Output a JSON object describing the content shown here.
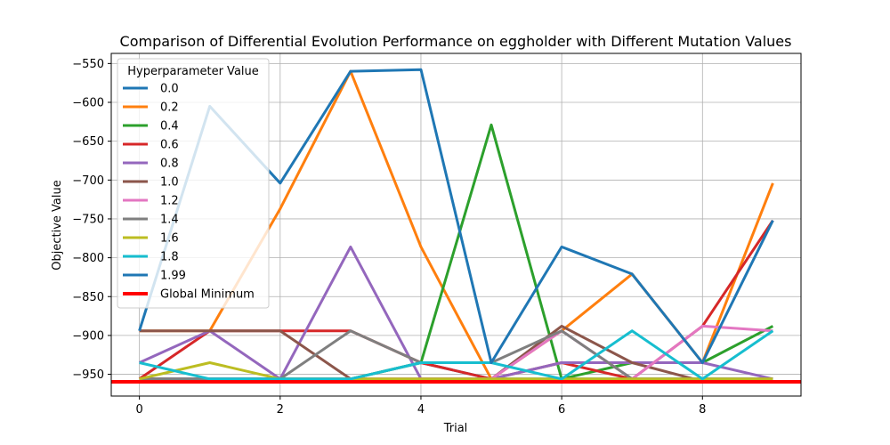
{
  "chart_data": {
    "type": "line",
    "title": "Comparison of Differential Evolution Performance on eggholder with Different Mutation Values",
    "xlabel": "Trial",
    "ylabel": "Objective Value",
    "xlim": [
      -0.4,
      9.4
    ],
    "ylim": [
      -978,
      -537
    ],
    "xticks": [
      0,
      2,
      4,
      6,
      8
    ],
    "yticks": [
      -950,
      -900,
      -850,
      -800,
      -750,
      -700,
      -650,
      -600,
      -550
    ],
    "grid": true,
    "legend_title": "Hyperparameter Value",
    "legend_position": "upper-left",
    "x": [
      0,
      1,
      2,
      3,
      4,
      5,
      6,
      7,
      8,
      9
    ],
    "series": [
      {
        "name": "0.0",
        "color": "#1f77b4",
        "values": [
          -956,
          -956,
          -956,
          -956,
          -935,
          -956,
          -956,
          -956,
          -956,
          -956
        ]
      },
      {
        "name": "0.2",
        "color": "#ff7f0e",
        "values": [
          -894,
          -894,
          -737,
          -560,
          -786,
          -956,
          -894,
          -821,
          -935,
          -704
        ]
      },
      {
        "name": "0.4",
        "color": "#2ca02c",
        "values": [
          -956,
          -956,
          -956,
          -956,
          -935,
          -629,
          -956,
          -935,
          -935,
          -888
        ]
      },
      {
        "name": "0.6",
        "color": "#d62728",
        "values": [
          -956,
          -894,
          -894,
          -894,
          -935,
          -956,
          -935,
          -956,
          -888,
          -752
        ]
      },
      {
        "name": "0.8",
        "color": "#9467bd",
        "values": [
          -935,
          -894,
          -956,
          -786,
          -956,
          -956,
          -935,
          -935,
          -935,
          -956
        ]
      },
      {
        "name": "1.0",
        "color": "#8c564b",
        "values": [
          -894,
          -894,
          -894,
          -956,
          -956,
          -956,
          -888,
          -935,
          -959,
          -956
        ]
      },
      {
        "name": "1.2",
        "color": "#e377c2",
        "values": [
          -956,
          -956,
          -956,
          -956,
          -956,
          -956,
          -894,
          -956,
          -888,
          -894
        ]
      },
      {
        "name": "1.4",
        "color": "#7f7f7f",
        "values": [
          -956,
          -956,
          -956,
          -894,
          -935,
          -935,
          -894,
          -956,
          -956,
          -956
        ]
      },
      {
        "name": "1.6",
        "color": "#bcbd22",
        "values": [
          -956,
          -935,
          -956,
          -956,
          -956,
          -956,
          -956,
          -956,
          -956,
          -956
        ]
      },
      {
        "name": "1.8",
        "color": "#17becf",
        "values": [
          -935,
          -956,
          -956,
          -956,
          -935,
          -935,
          -956,
          -894,
          -956,
          -894
        ]
      },
      {
        "name": "1.99",
        "color": "#1f77b4",
        "values": [
          -894,
          -605,
          -704,
          -560,
          -558,
          -935,
          -786,
          -821,
          -935,
          -752
        ]
      },
      {
        "name": "Global Minimum",
        "color": "#ff0000",
        "values": [
          -959.64,
          -959.64,
          -959.64,
          -959.64,
          -959.64,
          -959.64,
          -959.64,
          -959.64,
          -959.64,
          -959.64
        ],
        "style": "hline"
      }
    ]
  }
}
